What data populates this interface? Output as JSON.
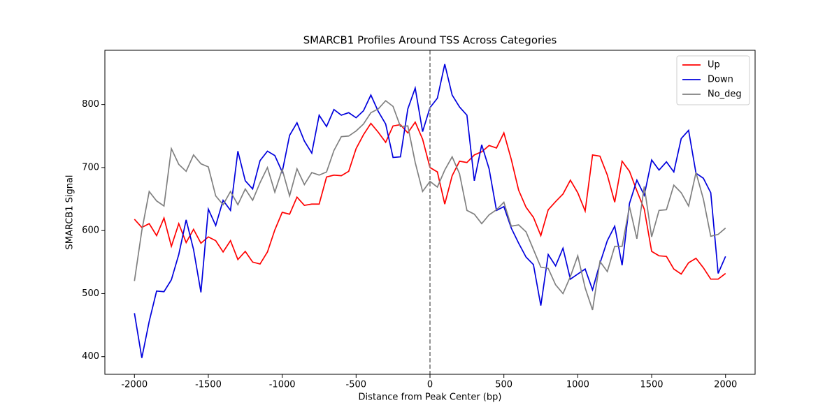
{
  "chart_data": {
    "type": "line",
    "title": "SMARCB1 Profiles Around TSS Across Categories",
    "xlabel": "Distance from Peak Center (bp)",
    "ylabel": "SMARCB1 Signal",
    "x": [
      -2000,
      -1950,
      -1900,
      -1850,
      -1800,
      -1750,
      -1700,
      -1650,
      -1600,
      -1550,
      -1500,
      -1450,
      -1400,
      -1350,
      -1300,
      -1250,
      -1200,
      -1150,
      -1100,
      -1050,
      -1000,
      -950,
      -900,
      -850,
      -800,
      -750,
      -700,
      -650,
      -600,
      -550,
      -500,
      -450,
      -400,
      -350,
      -300,
      -250,
      -200,
      -150,
      -100,
      -50,
      0,
      50,
      100,
      150,
      200,
      250,
      300,
      350,
      400,
      450,
      500,
      550,
      600,
      650,
      700,
      750,
      800,
      850,
      900,
      950,
      1000,
      1050,
      1100,
      1150,
      1200,
      1250,
      1300,
      1350,
      1400,
      1450,
      1500,
      1550,
      1600,
      1650,
      1700,
      1750,
      1800,
      1850,
      1900,
      1950,
      2000
    ],
    "series": [
      {
        "name": "Up",
        "color": "#ff0000",
        "values": [
          618,
          605,
          611,
          592,
          620,
          575,
          611,
          581,
          602,
          580,
          590,
          584,
          566,
          584,
          554,
          567,
          550,
          547,
          566,
          601,
          629,
          626,
          653,
          640,
          642,
          642,
          685,
          688,
          687,
          694,
          730,
          752,
          770,
          756,
          740,
          766,
          768,
          755,
          772,
          745,
          700,
          693,
          642,
          687,
          710,
          708,
          720,
          725,
          735,
          731,
          755,
          713,
          664,
          637,
          621,
          592,
          633,
          646,
          658,
          680,
          660,
          631,
          720,
          718,
          688,
          645,
          710,
          694,
          663,
          634,
          567,
          560,
          559,
          539,
          531,
          549,
          556,
          541,
          523,
          523,
          532
        ]
      },
      {
        "name": "Down",
        "color": "#0000dd",
        "values": [
          469,
          398,
          456,
          504,
          503,
          522,
          562,
          617,
          570,
          502,
          634,
          608,
          648,
          632,
          726,
          679,
          666,
          711,
          726,
          719,
          693,
          751,
          771,
          742,
          723,
          783,
          765,
          792,
          783,
          787,
          779,
          790,
          815,
          789,
          769,
          716,
          717,
          793,
          826,
          757,
          795,
          810,
          864,
          815,
          796,
          783,
          679,
          736,
          698,
          632,
          638,
          604,
          580,
          558,
          546,
          481,
          562,
          544,
          572,
          523,
          531,
          539,
          506,
          548,
          584,
          607,
          545,
          643,
          680,
          656,
          712,
          696,
          709,
          693,
          746,
          759,
          691,
          683,
          660,
          532,
          559
        ]
      },
      {
        "name": "No_deg",
        "color": "#808080",
        "values": [
          520,
          600,
          662,
          647,
          639,
          730,
          705,
          694,
          720,
          706,
          701,
          655,
          641,
          662,
          641,
          666,
          648,
          676,
          700,
          661,
          697,
          655,
          698,
          673,
          692,
          688,
          693,
          727,
          749,
          750,
          758,
          769,
          787,
          793,
          806,
          797,
          765,
          766,
          708,
          662,
          678,
          669,
          696,
          717,
          690,
          632,
          626,
          611,
          625,
          633,
          645,
          607,
          609,
          598,
          570,
          542,
          540,
          514,
          500,
          527,
          560,
          509,
          474,
          551,
          535,
          575,
          575,
          638,
          587,
          670,
          590,
          632,
          633,
          672,
          660,
          639,
          692,
          650,
          591,
          594,
          604
        ]
      }
    ],
    "xlim": [
      -2200,
      2200
    ],
    "ylim": [
      372,
      886
    ],
    "xticks": [
      -2000,
      -1500,
      -1000,
      -500,
      0,
      500,
      1000,
      1500,
      2000
    ],
    "yticks": [
      400,
      500,
      600,
      700,
      800
    ],
    "vline": 0,
    "vline_color": "#808080",
    "legend": "upper right",
    "grid": false
  }
}
